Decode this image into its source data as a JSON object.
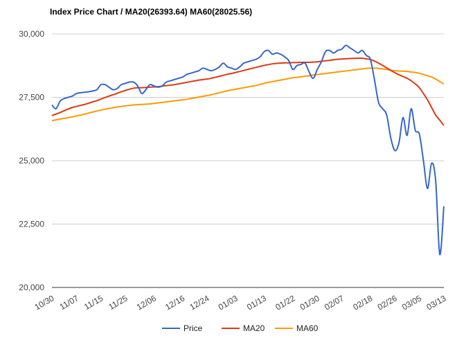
{
  "chart_data": {
    "type": "line",
    "title": "Index Price Chart / MA20(26393.64) MA60(28025.56)",
    "xlabel": "",
    "ylabel": "",
    "ylim": [
      20000,
      30000
    ],
    "yticks": [
      20000,
      22500,
      25000,
      27500,
      30000
    ],
    "ytick_labels": [
      "20,000",
      "22,500",
      "25,000",
      "27,500",
      "30,000"
    ],
    "x_tick_labels": [
      "10/30",
      "11/07",
      "11/15",
      "11/25",
      "12/06",
      "12/16",
      "12/24",
      "01/03",
      "01/13",
      "01/22",
      "01/30",
      "02/07",
      "02/18",
      "02/26",
      "03/05",
      "03/13"
    ],
    "x_tick_index": [
      0,
      6,
      12,
      18,
      25,
      32,
      38,
      45,
      52,
      59,
      65,
      71,
      78,
      84,
      90,
      96
    ],
    "grid": true,
    "legend_position": "bottom",
    "series": [
      {
        "name": "Price",
        "color": "#3366cc",
        "values": [
          27200,
          27050,
          27350,
          27450,
          27500,
          27550,
          27650,
          27680,
          27700,
          27720,
          27750,
          27800,
          28000,
          28000,
          27900,
          27800,
          27850,
          28000,
          28050,
          28100,
          28100,
          27950,
          27650,
          27800,
          28000,
          27950,
          27900,
          27950,
          28100,
          28150,
          28200,
          28250,
          28300,
          28400,
          28450,
          28500,
          28550,
          28650,
          28600,
          28550,
          28600,
          28700,
          28850,
          28700,
          28650,
          28600,
          28700,
          28850,
          28900,
          28950,
          29000,
          29100,
          29300,
          29350,
          29200,
          29250,
          29200,
          29100,
          28950,
          28600,
          28750,
          28800,
          28850,
          28500,
          28250,
          28600,
          28900,
          29300,
          29350,
          29250,
          29350,
          29400,
          29550,
          29450,
          29350,
          29250,
          29350,
          29150,
          29000,
          28200,
          27300,
          27050,
          26800,
          25900,
          25400,
          25700,
          26700,
          26000,
          27050,
          26200,
          26050,
          25000,
          23900,
          24900,
          24200,
          21300,
          23200
        ]
      },
      {
        "name": "MA20",
        "color": "#dc3912",
        "values": [
          26780,
          26840,
          26900,
          26970,
          27040,
          27100,
          27140,
          27180,
          27220,
          27270,
          27320,
          27370,
          27430,
          27490,
          27550,
          27600,
          27660,
          27720,
          27770,
          27820,
          27860,
          27880,
          27880,
          27890,
          27900,
          27910,
          27920,
          27940,
          27960,
          27980,
          28000,
          28030,
          28060,
          28090,
          28120,
          28150,
          28180,
          28200,
          28220,
          28250,
          28290,
          28330,
          28370,
          28410,
          28440,
          28480,
          28520,
          28560,
          28600,
          28640,
          28680,
          28720,
          28760,
          28790,
          28820,
          28840,
          28850,
          28860,
          28860,
          28870,
          28870,
          28880,
          28880,
          28880,
          28890,
          28900,
          28920,
          28940,
          28960,
          28980,
          29000,
          29010,
          29020,
          29030,
          29040,
          29040,
          29040,
          29020,
          28990,
          28930,
          28850,
          28760,
          28660,
          28560,
          28470,
          28390,
          28320,
          28250,
          28150,
          28030,
          27880,
          27650,
          27400,
          27100,
          26800,
          26600,
          26393.64
        ]
      },
      {
        "name": "MA60",
        "color": "#ff9900",
        "values": [
          26580,
          26610,
          26640,
          26670,
          26700,
          26730,
          26760,
          26800,
          26840,
          26880,
          26920,
          26960,
          27000,
          27030,
          27060,
          27090,
          27120,
          27140,
          27160,
          27180,
          27200,
          27210,
          27220,
          27230,
          27240,
          27260,
          27280,
          27300,
          27320,
          27340,
          27360,
          27380,
          27400,
          27420,
          27450,
          27480,
          27510,
          27540,
          27570,
          27600,
          27640,
          27680,
          27720,
          27760,
          27790,
          27820,
          27850,
          27880,
          27910,
          27940,
          27970,
          28010,
          28050,
          28090,
          28120,
          28150,
          28180,
          28210,
          28240,
          28270,
          28290,
          28310,
          28330,
          28350,
          28380,
          28400,
          28420,
          28440,
          28460,
          28480,
          28500,
          28520,
          28540,
          28560,
          28580,
          28600,
          28620,
          28640,
          28650,
          28650,
          28640,
          28620,
          28600,
          28570,
          28550,
          28540,
          28530,
          28520,
          28500,
          28480,
          28450,
          28400,
          28350,
          28300,
          28220,
          28120,
          28025.56
        ]
      }
    ]
  }
}
